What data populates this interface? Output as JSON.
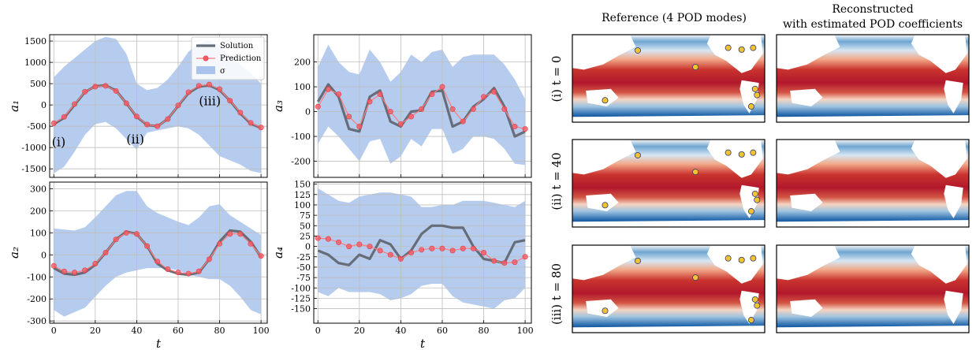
{
  "chart_data": [
    {
      "id": "a1",
      "type": "line",
      "ylabel": "a₁",
      "xlabel": "",
      "xlim": [
        -2,
        103
      ],
      "ylim": [
        -1700,
        1650
      ],
      "grid": true,
      "xticks": [
        0,
        20,
        40,
        60,
        80,
        100
      ],
      "show_xtick_labels": false,
      "yticks": [
        -1500,
        -1000,
        -500,
        0,
        500,
        1000,
        1500
      ],
      "x": [
        0,
        5,
        10,
        15,
        20,
        25,
        30,
        35,
        40,
        45,
        50,
        55,
        60,
        65,
        70,
        75,
        80,
        85,
        90,
        95,
        100
      ],
      "series": [
        {
          "name": "Solution",
          "values": [
            -450,
            -300,
            0,
            300,
            440,
            460,
            340,
            40,
            -280,
            -470,
            -500,
            -330,
            -20,
            280,
            430,
            460,
            350,
            100,
            -200,
            -440,
            -540
          ]
        },
        {
          "name": "Prediction",
          "values": [
            -430,
            -280,
            20,
            310,
            430,
            450,
            330,
            40,
            -270,
            -460,
            -500,
            -330,
            -10,
            300,
            450,
            480,
            370,
            100,
            -180,
            -420,
            -530
          ]
        }
      ],
      "band": {
        "name": "σ",
        "lower": [
          -1600,
          -1450,
          -1100,
          -700,
          -450,
          -400,
          -550,
          -800,
          -1050,
          -650,
          -600,
          -550,
          -500,
          -550,
          -700,
          -950,
          -1200,
          -1300,
          -1400,
          -1550,
          -1600
        ],
        "upper": [
          650,
          900,
          1100,
          1300,
          1500,
          1600,
          1550,
          1200,
          500,
          350,
          400,
          600,
          900,
          1250,
          1450,
          1500,
          1400,
          1150,
          950,
          750,
          500
        ]
      },
      "legend": {
        "position": "top-right",
        "entries": [
          "Solution",
          "Prediction",
          "σ"
        ]
      },
      "annotations": [
        {
          "text": "(i)",
          "x": -1,
          "y": -970
        },
        {
          "text": "(ii)",
          "x": 35,
          "y": -900
        },
        {
          "text": "(iii)",
          "x": 70,
          "y": -10
        }
      ]
    },
    {
      "id": "a2",
      "type": "line",
      "ylabel": "a₂",
      "xlabel": "t",
      "xlim": [
        -2,
        103
      ],
      "ylim": [
        -310,
        330
      ],
      "grid": true,
      "xticks": [
        0,
        20,
        40,
        60,
        80,
        100
      ],
      "show_xtick_labels": true,
      "yticks": [
        -300,
        -200,
        -100,
        0,
        100,
        200,
        300
      ],
      "x": [
        0,
        5,
        10,
        15,
        20,
        25,
        30,
        35,
        40,
        45,
        50,
        55,
        60,
        65,
        70,
        75,
        80,
        85,
        90,
        95,
        100
      ],
      "series": [
        {
          "name": "Solution",
          "values": [
            -60,
            -85,
            -90,
            -80,
            -45,
            10,
            70,
            105,
            95,
            40,
            -40,
            -70,
            -85,
            -90,
            -80,
            -20,
            60,
            110,
            105,
            60,
            -10
          ]
        },
        {
          "name": "Prediction",
          "values": [
            -50,
            -75,
            -80,
            -70,
            -40,
            10,
            70,
            100,
            95,
            40,
            -30,
            -65,
            -80,
            -85,
            -75,
            -20,
            50,
            95,
            95,
            50,
            -5
          ]
        }
      ],
      "band": {
        "name": "σ",
        "lower": [
          -250,
          -280,
          -260,
          -240,
          -190,
          -140,
          -100,
          -80,
          -70,
          -60,
          -60,
          -60,
          -70,
          -90,
          -100,
          -110,
          -110,
          -140,
          -190,
          -250,
          -270
        ],
        "upper": [
          120,
          115,
          110,
          125,
          170,
          220,
          270,
          290,
          290,
          220,
          190,
          170,
          150,
          135,
          170,
          220,
          230,
          180,
          150,
          120,
          90
        ]
      }
    },
    {
      "id": "a3",
      "type": "line",
      "ylabel": "a₃",
      "xlabel": "",
      "xlim": [
        -2,
        103
      ],
      "ylim": [
        -265,
        310
      ],
      "grid": true,
      "xticks": [
        0,
        20,
        40,
        60,
        80,
        100
      ],
      "show_xtick_labels": false,
      "yticks": [
        -200,
        -100,
        0,
        100,
        200
      ],
      "x": [
        0,
        5,
        10,
        15,
        20,
        25,
        30,
        35,
        40,
        45,
        50,
        55,
        60,
        65,
        70,
        75,
        80,
        85,
        90,
        95,
        100
      ],
      "series": [
        {
          "name": "Solution",
          "values": [
            40,
            110,
            60,
            -70,
            -80,
            60,
            85,
            -40,
            -60,
            0,
            5,
            80,
            85,
            -60,
            -40,
            20,
            50,
            95,
            20,
            -100,
            -80
          ]
        },
        {
          "name": "Prediction",
          "values": [
            20,
            90,
            70,
            -20,
            -60,
            40,
            70,
            0,
            -50,
            -20,
            10,
            70,
            100,
            10,
            -40,
            10,
            60,
            80,
            10,
            -60,
            -70
          ]
        }
      ],
      "band": {
        "name": "σ",
        "lower": [
          -130,
          -60,
          -100,
          -150,
          -200,
          -120,
          -110,
          -210,
          -180,
          -110,
          -140,
          -70,
          -70,
          -170,
          -150,
          -100,
          -100,
          -110,
          -150,
          -210,
          -215
        ]
      },
      "band_upper": [
        180,
        270,
        200,
        160,
        150,
        250,
        200,
        120,
        160,
        230,
        200,
        240,
        250,
        180,
        220,
        230,
        230,
        230,
        190,
        130,
        50
      ]
    },
    {
      "id": "a4",
      "type": "line",
      "ylabel": "a₄",
      "xlabel": "t",
      "xlim": [
        -2,
        103
      ],
      "ylim": [
        -185,
        155
      ],
      "grid": true,
      "xticks": [
        0,
        20,
        40,
        60,
        80,
        100
      ],
      "show_xtick_labels": true,
      "yticks": [
        -150,
        -125,
        -100,
        -75,
        -50,
        -25,
        0,
        25,
        50,
        75,
        100,
        125,
        150
      ],
      "x": [
        0,
        5,
        10,
        15,
        20,
        25,
        30,
        35,
        40,
        45,
        50,
        55,
        60,
        65,
        70,
        75,
        80,
        85,
        90,
        95,
        100
      ],
      "series": [
        {
          "name": "Solution",
          "values": [
            -10,
            -20,
            -40,
            -45,
            -20,
            -30,
            15,
            5,
            -30,
            -10,
            30,
            50,
            50,
            45,
            45,
            0,
            -30,
            -35,
            -40,
            10,
            15
          ]
        },
        {
          "name": "Prediction",
          "values": [
            20,
            18,
            10,
            0,
            5,
            0,
            -10,
            -20,
            -30,
            -15,
            -8,
            -5,
            -5,
            -10,
            -5,
            -5,
            -15,
            -35,
            -40,
            -38,
            -25
          ]
        }
      ],
      "band": {
        "name": "σ",
        "lower": [
          -110,
          -120,
          -100,
          -110,
          -110,
          -110,
          -115,
          -130,
          -125,
          -115,
          -95,
          -90,
          -90,
          -120,
          -135,
          -140,
          -145,
          -150,
          -130,
          -125,
          -100
        ],
        "upper": [
          140,
          125,
          110,
          105,
          120,
          125,
          130,
          130,
          125,
          120,
          95,
          95,
          100,
          100,
          110,
          110,
          110,
          105,
          100,
          95,
          110
        ]
      }
    }
  ],
  "maps": {
    "col_headers": [
      "Reference (4 POD modes)",
      "Reconstructed",
      "with estimated POD coefficients"
    ],
    "row_labels": [
      "(i) t = 0",
      "(ii) t = 40",
      "(iii) t = 80"
    ],
    "colors": {
      "warm": "#b2182b",
      "mid": "#f7f7f7",
      "cool": "#2166ac",
      "deep": "#0b3060",
      "sensor": "#f2c233",
      "land": "#ffffff"
    }
  }
}
